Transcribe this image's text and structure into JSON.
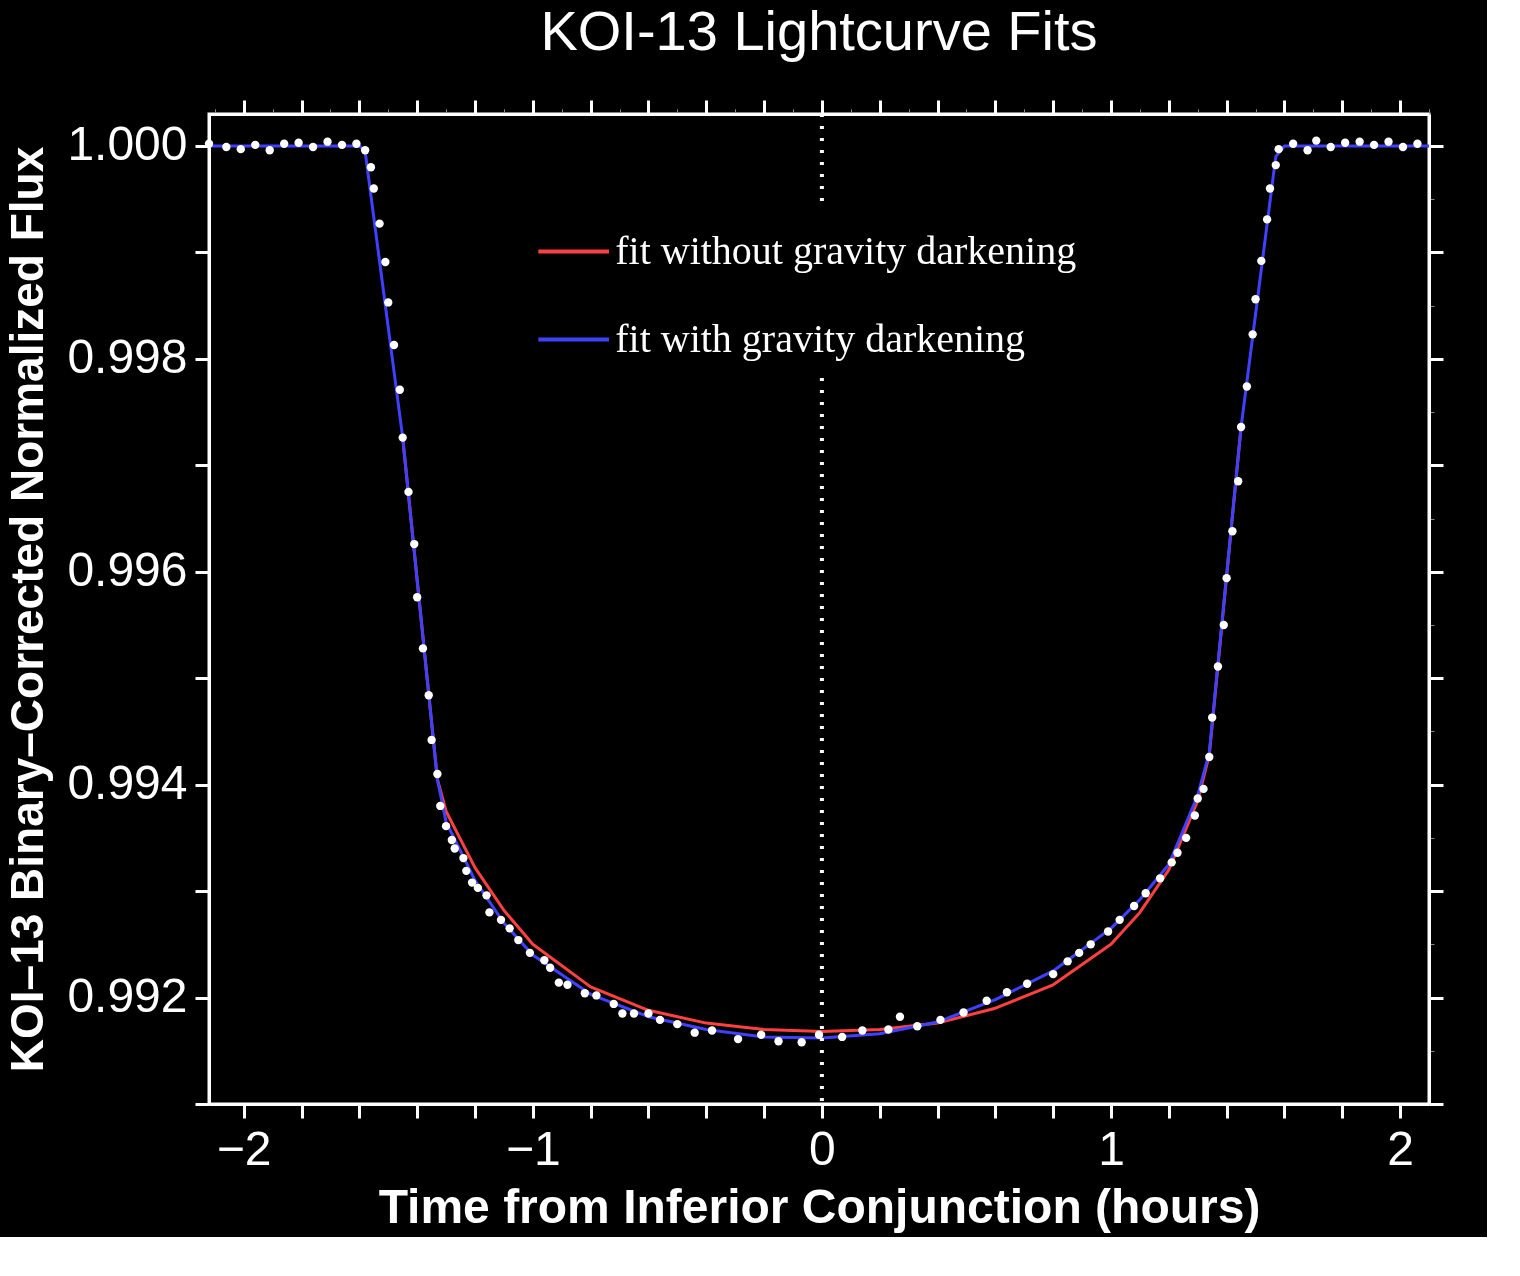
{
  "chart_data": {
    "type": "scatter",
    "title": "KOI-13 Lightcurve Fits",
    "xlabel": "Time from Inferior Conjunction (hours)",
    "ylabel": "KOI–13 Binary–Corrected Normalized Flux",
    "xlim": [
      -2.12,
      2.1
    ],
    "ylim": [
      0.991,
      1.0003
    ],
    "xticks": [
      {
        "value": -2,
        "label": "−2"
      },
      {
        "value": -1.8,
        "label": null
      },
      {
        "value": -1.6,
        "label": null
      },
      {
        "value": -1.4,
        "label": null
      },
      {
        "value": -1.2,
        "label": null
      },
      {
        "value": -1,
        "label": "−1"
      },
      {
        "value": -0.8,
        "label": null
      },
      {
        "value": -0.6,
        "label": null
      },
      {
        "value": -0.4,
        "label": null
      },
      {
        "value": -0.2,
        "label": null
      },
      0,
      {
        "value": 0.2,
        "label": null
      },
      {
        "value": 0.4,
        "label": null
      },
      {
        "value": 0.6,
        "label": null
      },
      {
        "value": 0.8,
        "label": null
      },
      1,
      {
        "value": 1.2,
        "label": null
      },
      {
        "value": 1.4,
        "label": null
      },
      {
        "value": 1.6,
        "label": null
      },
      {
        "value": 1.8,
        "label": null
      },
      2
    ],
    "yticks": [
      {
        "value": 0.991,
        "label": null
      },
      0.992,
      {
        "value": 0.993,
        "label": null
      },
      0.994,
      {
        "value": 0.995,
        "label": null
      },
      0.996,
      {
        "value": 0.997,
        "label": null
      },
      0.998,
      {
        "value": 0.999,
        "label": null
      },
      {
        "value": 1.0,
        "label": "1.000"
      }
    ],
    "grid": false,
    "legend": "top",
    "ref_lines": [
      {
        "axis": "x",
        "value": 0,
        "color": "#ffffff",
        "line_style": "dotted"
      }
    ],
    "series": [
      {
        "name": "fit without gravity darkening",
        "type": "line",
        "color": "#ff4040",
        "line_style": "solid",
        "x": [
          -1.45,
          -1.33,
          -1.3,
          -1.2,
          -1.1,
          -1.0,
          -0.8,
          -0.6,
          -0.4,
          -0.2,
          0,
          0.2,
          0.4,
          0.6,
          0.8,
          1.0,
          1.1,
          1.2,
          1.3,
          1.34,
          1.45
        ],
        "values": [
          0.99726,
          0.99405,
          0.99375,
          0.99322,
          0.99282,
          0.9925,
          0.9921,
          0.99188,
          0.99176,
          0.9917,
          0.99168,
          0.9917,
          0.99176,
          0.9919,
          0.99212,
          0.9925,
          0.9928,
          0.9932,
          0.99385,
          0.99428,
          0.99736
        ]
      },
      {
        "name": "fit with gravity darkening",
        "type": "line",
        "color": "#4040ff",
        "line_style": "solid",
        "x": [
          -2.12,
          -1.6,
          -1.58,
          -1.45,
          -1.33,
          -1.3,
          -1.2,
          -1.1,
          -1.0,
          -0.8,
          -0.6,
          -0.4,
          -0.2,
          0,
          0.2,
          0.4,
          0.6,
          0.8,
          1.0,
          1.1,
          1.2,
          1.3,
          1.34,
          1.45,
          1.57,
          1.6,
          2.1
        ],
        "values": [
          1.0,
          1.0,
          0.99995,
          0.99726,
          0.99405,
          0.99365,
          0.9931,
          0.9927,
          0.9924,
          0.99203,
          0.99182,
          0.9917,
          0.99163,
          0.99162,
          0.99166,
          0.99177,
          0.99198,
          0.99225,
          0.99265,
          0.99292,
          0.99325,
          0.9939,
          0.9943,
          0.99736,
          0.9999,
          1.0,
          1.0
        ]
      },
      {
        "type": "scatter",
        "color": "#ffffff",
        "marker": "circle",
        "x": [
          -2.12,
          -2.06,
          -2.01,
          -1.96,
          -1.91,
          -1.86,
          -1.81,
          -1.76,
          -1.71,
          -1.66,
          -1.61,
          -1.58,
          -1.56,
          -1.55,
          -1.53,
          -1.51,
          -1.5,
          -1.48,
          -1.46,
          -1.45,
          -1.43,
          -1.41,
          -1.4,
          -1.38,
          -1.36,
          -1.35,
          -1.33,
          -1.32,
          -1.3,
          -1.28,
          -1.27,
          -1.24,
          -1.23,
          -1.21,
          -1.19,
          -1.16,
          -1.15,
          -1.11,
          -1.08,
          -1.05,
          -1.01,
          -0.96,
          -0.94,
          -0.91,
          -0.88,
          -0.82,
          -0.78,
          -0.72,
          -0.69,
          -0.65,
          -0.6,
          -0.56,
          -0.5,
          -0.44,
          -0.38,
          -0.29,
          -0.21,
          -0.15,
          -0.07,
          -0.01,
          0.07,
          0.14,
          0.23,
          0.27,
          0.33,
          0.41,
          0.49,
          0.57,
          0.64,
          0.71,
          0.8,
          0.85,
          0.89,
          0.93,
          0.99,
          1.03,
          1.08,
          1.12,
          1.17,
          1.21,
          1.23,
          1.26,
          1.29,
          1.3,
          1.32,
          1.34,
          1.35,
          1.37,
          1.39,
          1.4,
          1.42,
          1.44,
          1.45,
          1.47,
          1.49,
          1.5,
          1.52,
          1.54,
          1.55,
          1.57,
          1.58,
          1.63,
          1.68,
          1.71,
          1.76,
          1.81,
          1.86,
          1.91,
          1.96,
          2.01,
          2.06
        ],
        "values": [
          1.00002,
          0.99999,
          0.99997,
          1.00001,
          0.99996,
          1.00002,
          1.00003,
          0.99999,
          1.00004,
          1.00001,
          1.00002,
          0.99996,
          0.9998,
          0.9996,
          0.99927,
          0.99891,
          0.99853,
          0.99813,
          0.99771,
          0.99726,
          0.99675,
          0.99626,
          0.99576,
          0.99528,
          0.99484,
          0.99442,
          0.9941,
          0.9938,
          0.99361,
          0.99348,
          0.9934,
          0.99331,
          0.99319,
          0.99308,
          0.99303,
          0.99296,
          0.9928,
          0.99273,
          0.99265,
          0.99254,
          0.99242,
          0.99235,
          0.99228,
          0.99214,
          0.99212,
          0.99204,
          0.99202,
          0.99194,
          0.99185,
          0.99185,
          0.99185,
          0.99179,
          0.99175,
          0.99167,
          0.99169,
          0.99161,
          0.99165,
          0.99159,
          0.99158,
          0.99165,
          0.99163,
          0.99169,
          0.9917,
          0.99182,
          0.99173,
          0.99179,
          0.99186,
          0.99197,
          0.99205,
          0.99213,
          0.99222,
          0.99234,
          0.99242,
          0.9925,
          0.99262,
          0.99273,
          0.99286,
          0.99298,
          0.99312,
          0.99327,
          0.99336,
          0.9935,
          0.99371,
          0.99387,
          0.99396,
          0.99426,
          0.99463,
          0.99511,
          0.9955,
          0.99594,
          0.99638,
          0.99685,
          0.99736,
          0.99774,
          0.99823,
          0.99856,
          0.99892,
          0.99931,
          0.9996,
          0.99982,
          0.99997,
          1.00002,
          0.99996,
          1.00005,
          0.99999,
          1.00003,
          1.00004,
          1.00001,
          1.00004,
          0.99999,
          1.00002
        ]
      }
    ]
  }
}
